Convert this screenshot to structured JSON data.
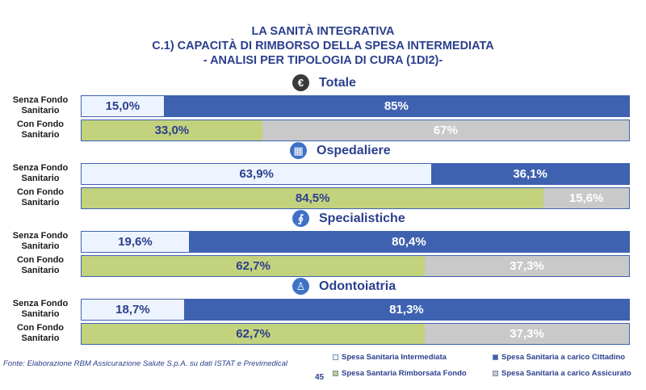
{
  "title": {
    "line1": "LA SANITÀ INTEGRATIVA",
    "line2": "C.1) CAPACITÀ DI RIMBORSO DELLA SPESA INTERMEDIATA",
    "line3": "- ANALISI PER TIPOLOGIA DI CURA (1DI2)-"
  },
  "chart_data": {
    "type": "bar",
    "orientation": "horizontal-stacked-100",
    "groups": [
      {
        "name": "Totale",
        "icon": "euro-icon",
        "rows": [
          {
            "label": "Senza Fondo Sanitario",
            "segments": [
              {
                "series": "Spesa Sanitaria Intermediata",
                "value": 15.0,
                "text": "15,0%"
              },
              {
                "series": "Spesa Sanitaria a carico Cittadino",
                "value": 85.0,
                "text": "85%"
              }
            ]
          },
          {
            "label": "Con Fondo Sanitario",
            "segments": [
              {
                "series": "Spesa Santaria Rimborsata Fondo",
                "value": 33.0,
                "text": "33,0%"
              },
              {
                "series": "Spesa Sanitaria a carico Assicurato",
                "value": 67.0,
                "text": "67%"
              }
            ]
          }
        ]
      },
      {
        "name": "Ospedaliere",
        "icon": "hospital-icon",
        "rows": [
          {
            "label": "Senza Fondo Sanitario",
            "segments": [
              {
                "series": "Spesa Sanitaria Intermediata",
                "value": 63.9,
                "text": "63,9%"
              },
              {
                "series": "Spesa Sanitaria a carico Cittadino",
                "value": 36.1,
                "text": "36,1%"
              }
            ]
          },
          {
            "label": "Con Fondo Sanitario",
            "segments": [
              {
                "series": "Spesa Santaria Rimborsata Fondo",
                "value": 84.5,
                "text": "84,5%"
              },
              {
                "series": "Spesa Sanitaria a carico Assicurato",
                "value": 15.6,
                "text": "15,6%"
              }
            ]
          }
        ]
      },
      {
        "name": "Specialistiche",
        "icon": "stethoscope-icon",
        "rows": [
          {
            "label": "Senza Fondo Sanitario",
            "segments": [
              {
                "series": "Spesa Sanitaria Intermediata",
                "value": 19.6,
                "text": "19,6%"
              },
              {
                "series": "Spesa Sanitaria a carico Cittadino",
                "value": 80.4,
                "text": "80,4%"
              }
            ]
          },
          {
            "label": "Con Fondo Sanitario",
            "segments": [
              {
                "series": "Spesa Santaria Rimborsata Fondo",
                "value": 62.7,
                "text": "62,7%"
              },
              {
                "series": "Spesa Sanitaria a carico Assicurato",
                "value": 37.3,
                "text": "37,3%"
              }
            ]
          }
        ]
      },
      {
        "name": "Odontoiatria",
        "icon": "tooth-icon",
        "rows": [
          {
            "label": "Senza Fondo Sanitario",
            "segments": [
              {
                "series": "Spesa Sanitaria Intermediata",
                "value": 18.7,
                "text": "18,7%"
              },
              {
                "series": "Spesa Sanitaria a carico Cittadino",
                "value": 81.3,
                "text": "81,3%"
              }
            ]
          },
          {
            "label": "Con Fondo Sanitario",
            "segments": [
              {
                "series": "Spesa Santaria Rimborsata Fondo",
                "value": 62.7,
                "text": "62,7%"
              },
              {
                "series": "Spesa Sanitaria a carico Assicurato",
                "value": 37.3,
                "text": "37,3%"
              }
            ]
          }
        ]
      }
    ],
    "legend": [
      {
        "name": "Spesa Sanitaria Intermediata",
        "color": "#eef4ff"
      },
      {
        "name": "Spesa Sanitaria a carico Cittadino",
        "color": "#3e62b0"
      },
      {
        "name": "Spesa Santaria Rimborsata Fondo",
        "color": "#c3d27d"
      },
      {
        "name": "Spesa Sanitaria a carico Assicurato",
        "color": "#c9c9c9"
      }
    ],
    "legend_position": "bottom-right",
    "xlim": [
      0,
      100
    ]
  },
  "footer": {
    "source": "Fonte: Elaborazione RBM Assicurazione Salute S.p.A. su dati ISTAT e Previmedical",
    "page": "45"
  }
}
